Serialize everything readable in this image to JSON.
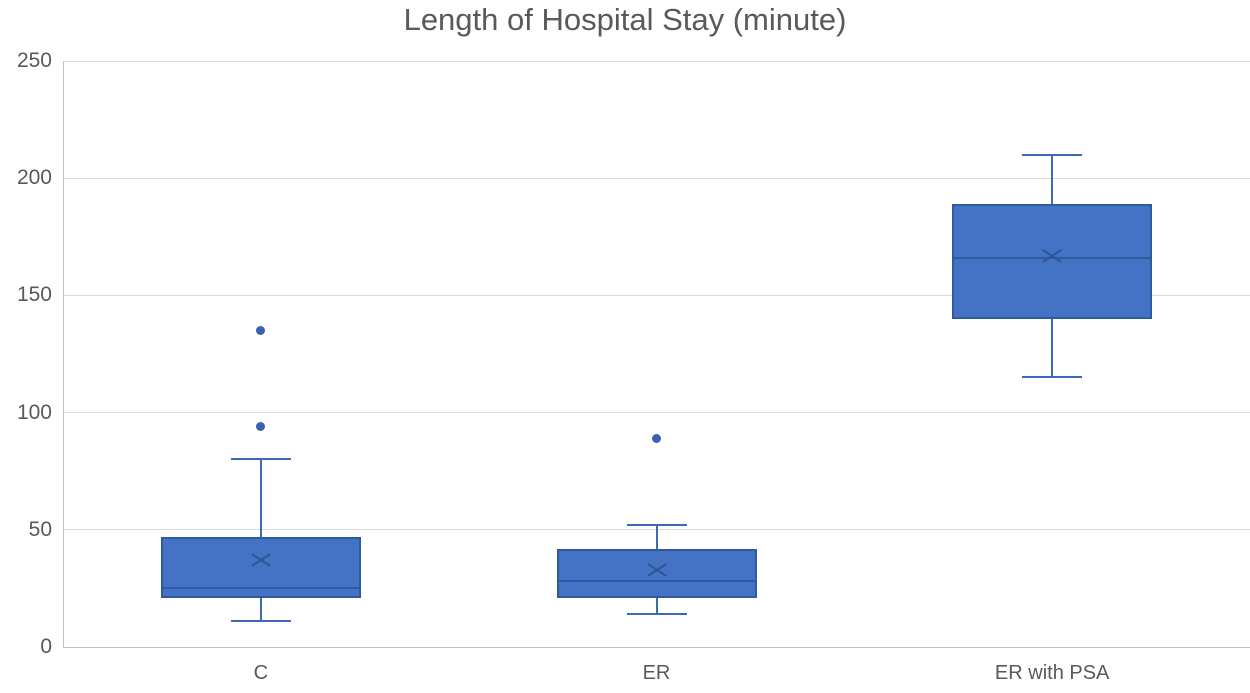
{
  "chart_data": {
    "type": "box",
    "title": "Length of Hospital Stay (minute)",
    "categories": [
      "C",
      "ER",
      "ER with PSA"
    ],
    "xlabel": "",
    "ylabel": "",
    "ylim": [
      0,
      250
    ],
    "yticks": [
      0,
      50,
      100,
      150,
      200,
      250
    ],
    "grid": "horizontal",
    "legend": "none",
    "series": [
      {
        "name": "C",
        "whisker_low": 11,
        "q1": 21,
        "median": 25,
        "q3": 47,
        "whisker_high": 80,
        "mean": 37,
        "outliers": [
          94,
          135
        ]
      },
      {
        "name": "ER",
        "whisker_low": 14,
        "q1": 21,
        "median": 28,
        "q3": 42,
        "whisker_high": 52,
        "mean": 33,
        "outliers": [
          89
        ]
      },
      {
        "name": "ER with PSA",
        "whisker_low": 115,
        "q1": 140,
        "median": 166,
        "q3": 189,
        "whisker_high": 210,
        "mean": 167,
        "outliers": []
      }
    ],
    "colors": {
      "box_fill": "#4472C4",
      "box_border": "#2E5B9F",
      "whisker": "#3E69B3",
      "mean_marker": "#2F5597",
      "outlier": "#3A62AD",
      "gridline": "#D9D9D9",
      "axis_line": "#BFBFBF",
      "text": "#595959",
      "background": "#FFFFFF"
    }
  }
}
